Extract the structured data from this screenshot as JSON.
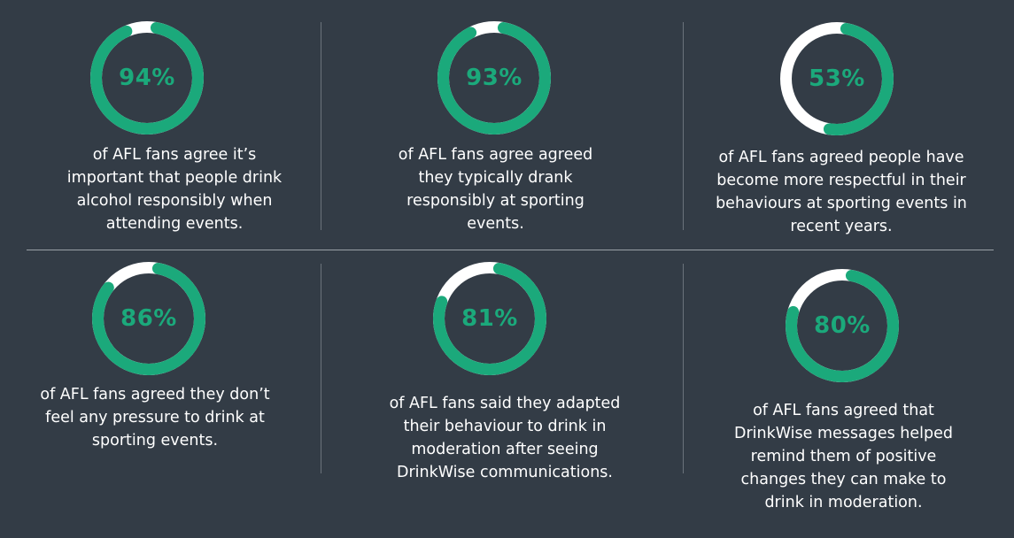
{
  "colors": {
    "accent": "#1ba97b",
    "track": "#ffffff",
    "background": "#333c46"
  },
  "stats": [
    {
      "value": 94,
      "label": "94%",
      "caption": "of AFL fans agree it’s important that people drink alcohol responsibly when attending events."
    },
    {
      "value": 93,
      "label": "93%",
      "caption": "of AFL fans agree agreed they typically drank responsibly at sporting events."
    },
    {
      "value": 53,
      "label": "53%",
      "caption": "of AFL fans agreed people have become more respectful in their behaviours at sporting events in recent years."
    },
    {
      "value": 86,
      "label": "86%",
      "caption": "of AFL fans agreed they don’t feel any pressure to drink at sporting events."
    },
    {
      "value": 81,
      "label": "81%",
      "caption": "of AFL fans said they adapted their behaviour to drink in moderation after seeing DrinkWise communications."
    },
    {
      "value": 80,
      "label": "80%",
      "caption": "of AFL fans agreed that DrinkWise messages helped remind them of positive changes they can make to drink in moderation."
    }
  ]
}
